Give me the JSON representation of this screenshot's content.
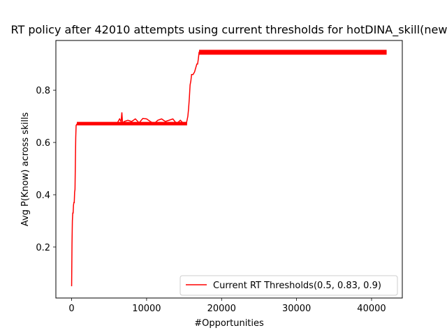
{
  "chart_data": {
    "type": "line",
    "title": "RT policy after 42010 attempts using current thresholds for hotDINA_skill(new",
    "xlabel": "#Opportunities",
    "ylabel": "Avg P(Know) across skills",
    "xlim": [
      -2100,
      44100
    ],
    "ylim": [
      0.005,
      0.99
    ],
    "xticks": [
      0,
      10000,
      20000,
      30000,
      40000
    ],
    "xtick_labels": [
      "0",
      "10000",
      "20000",
      "30000",
      "40000"
    ],
    "yticks": [
      0.2,
      0.4,
      0.6,
      0.8
    ],
    "ytick_labels": [
      "0.2",
      "0.4",
      "0.6",
      "0.8"
    ],
    "grid": false,
    "legend_placement": "lower-right",
    "series": [
      {
        "name": "Current RT Thresholds(0.5, 0.83, 0.9)",
        "color": "#ff0000",
        "x": [
          0,
          50,
          100,
          150,
          200,
          250,
          300,
          350,
          400,
          450,
          500,
          550,
          600,
          700,
          1000,
          2000,
          3000,
          4000,
          5000,
          6000,
          6400,
          6600,
          6700,
          6800,
          7000,
          7500,
          8000,
          8500,
          9000,
          9500,
          10000,
          10500,
          11000,
          11500,
          12000,
          12500,
          13000,
          13500,
          14000,
          14500,
          15000,
          15300,
          15500,
          15600,
          15700,
          15800,
          15900,
          16000,
          16200,
          16400,
          16600,
          16700,
          16800,
          16900,
          17000,
          20000,
          25000,
          30000,
          35000,
          40000,
          42010
        ],
        "values": [
          0.05,
          0.21,
          0.3,
          0.33,
          0.33,
          0.36,
          0.37,
          0.37,
          0.41,
          0.42,
          0.52,
          0.62,
          0.665,
          0.67,
          0.672,
          0.67,
          0.672,
          0.67,
          0.672,
          0.67,
          0.69,
          0.68,
          0.715,
          0.672,
          0.68,
          0.685,
          0.68,
          0.69,
          0.675,
          0.692,
          0.69,
          0.68,
          0.672,
          0.685,
          0.69,
          0.68,
          0.685,
          0.69,
          0.672,
          0.685,
          0.67,
          0.672,
          0.7,
          0.73,
          0.77,
          0.82,
          0.835,
          0.86,
          0.86,
          0.87,
          0.89,
          0.9,
          0.9,
          0.92,
          0.945,
          0.945,
          0.945,
          0.945,
          0.945,
          0.945,
          0.945
        ]
      }
    ]
  }
}
